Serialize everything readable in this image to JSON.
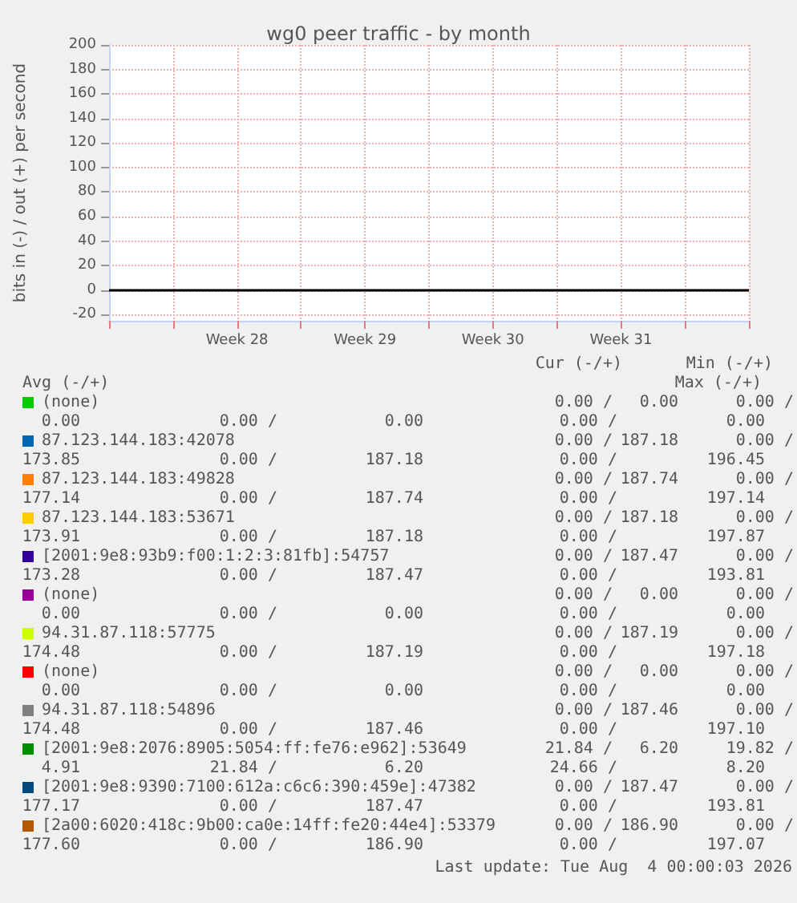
{
  "chart_data": {
    "type": "line",
    "title": "wg0 peer traffic - by month",
    "ylabel": "bits in (-) / out (+) per second",
    "categories": [
      null,
      null,
      "Week 28",
      null,
      "Week 29",
      null,
      "Week 30",
      null,
      "Week 31",
      null,
      null
    ],
    "ylim": [
      -25,
      200
    ],
    "yticks": [
      -20,
      0,
      20,
      40,
      60,
      80,
      100,
      120,
      140,
      160,
      180,
      200
    ],
    "grid": true,
    "legend": "bottom",
    "ref_lines": [
      {
        "axis": "y",
        "value": 0,
        "color": "#000000"
      }
    ],
    "series": [
      {
        "name": "(none)",
        "color": "#00cc00",
        "values": [
          null,
          null,
          null,
          null,
          null,
          null,
          null,
          null,
          null,
          null,
          null
        ]
      },
      {
        "name": "87.123.144.183:42078",
        "color": "#0066b3",
        "values": [
          null,
          null,
          null,
          null,
          null,
          null,
          null,
          null,
          null,
          null,
          null
        ]
      },
      {
        "name": "87.123.144.183:49828",
        "color": "#ff8000",
        "values": [
          null,
          null,
          null,
          null,
          null,
          null,
          null,
          null,
          null,
          null,
          null
        ]
      },
      {
        "name": "87.123.144.183:53671",
        "color": "#ffcc00",
        "values": [
          null,
          null,
          null,
          null,
          null,
          null,
          null,
          null,
          null,
          null,
          null
        ]
      },
      {
        "name": "[2001:9e8:93b9:f00:1:2:3:81fb]:54757",
        "color": "#330099",
        "values": [
          null,
          null,
          null,
          null,
          null,
          null,
          null,
          null,
          null,
          null,
          null
        ]
      },
      {
        "name": "(none)",
        "color": "#990099",
        "values": [
          null,
          null,
          null,
          null,
          null,
          null,
          null,
          null,
          null,
          null,
          null
        ]
      },
      {
        "name": "94.31.87.118:57775",
        "color": "#ccff00",
        "values": [
          null,
          null,
          null,
          null,
          null,
          null,
          null,
          null,
          null,
          null,
          null
        ]
      },
      {
        "name": "(none)",
        "color": "#ff0000",
        "values": [
          null,
          null,
          null,
          null,
          null,
          null,
          null,
          null,
          null,
          null,
          null
        ]
      },
      {
        "name": "94.31.87.118:54896",
        "color": "#808080",
        "values": [
          null,
          null,
          null,
          null,
          null,
          null,
          null,
          null,
          null,
          null,
          null
        ]
      },
      {
        "name": "[2001:9e8:2076:8905:5054:ff:fe76:e962]:53649",
        "color": "#008f00",
        "values": [
          null,
          null,
          null,
          null,
          null,
          null,
          null,
          null,
          null,
          null,
          null
        ]
      },
      {
        "name": "[2001:9e8:9390:7100:612a:c6c6:390:459e]:47382",
        "color": "#00487d",
        "values": [
          null,
          null,
          null,
          null,
          null,
          null,
          null,
          null,
          null,
          null,
          null
        ]
      },
      {
        "name": "[2a00:6020:418c:9b00:ca0e:14ff:fe20:44e4]:53379",
        "color": "#b35a00",
        "values": [
          null,
          null,
          null,
          null,
          null,
          null,
          null,
          null,
          null,
          null,
          null
        ]
      }
    ],
    "annotations": [
      "Cur (-/+)",
      "Min (-/+)",
      "Avg (-/+)",
      "Max (-/+)",
      "0.00 /",
      "0.00",
      "0.00 /",
      "0.00",
      "0.00 /",
      "0.00",
      "0.00 /",
      "0.00",
      "0.00 /",
      "187.18",
      "0.00 /",
      "173.85",
      "0.00 /",
      "187.18",
      "0.00 /",
      "196.45",
      "0.00 /",
      "187.74",
      "0.00 /",
      "177.14",
      "0.00 /",
      "187.74",
      "0.00 /",
      "197.14",
      "0.00 /",
      "187.18",
      "0.00 /",
      "173.91",
      "0.00 /",
      "187.18",
      "0.00 /",
      "197.87",
      "0.00 /",
      "187.47",
      "0.00 /",
      "173.28",
      "0.00 /",
      "187.47",
      "0.00 /",
      "193.81",
      "0.00 /",
      "0.00",
      "0.00 /",
      "0.00",
      "0.00 /",
      "0.00",
      "0.00 /",
      "0.00",
      "0.00 /",
      "187.19",
      "0.00 /",
      "174.48",
      "0.00 /",
      "187.19",
      "0.00 /",
      "197.18",
      "0.00 /",
      "0.00",
      "0.00 /",
      "0.00",
      "0.00 /",
      "0.00",
      "0.00 /",
      "0.00",
      "0.00 /",
      "187.46",
      "0.00 /",
      "174.48",
      "0.00 /",
      "187.46",
      "0.00 /",
      "197.10",
      "21.84 /",
      "6.20",
      "19.82 /",
      "4.91",
      "21.84 /",
      "6.20",
      "24.66 /",
      "8.20",
      "0.00 /",
      "187.47",
      "0.00 /",
      "177.17",
      "0.00 /",
      "187.47",
      "0.00 /",
      "193.81",
      "0.00 /",
      "186.90",
      "0.00 /",
      "177.60",
      "0.00 /",
      "186.90",
      "0.00 /",
      "197.07",
      "Last update: Tue Aug  4 00:00:03 2026"
    ]
  }
}
